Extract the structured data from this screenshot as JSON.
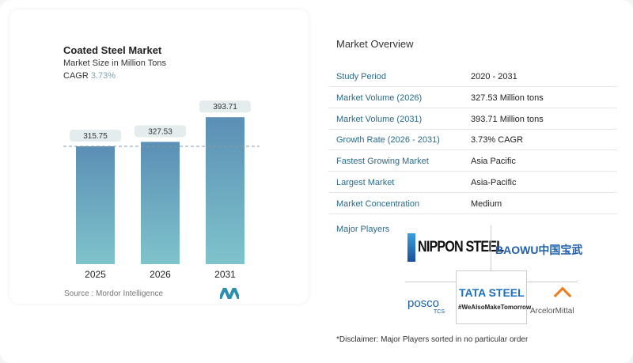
{
  "chart_data": {
    "type": "bar",
    "title": "Coated Steel Market",
    "subtitle": "Market Size in Million Tons",
    "cagr_label": "CAGR",
    "cagr_value": "3.73%",
    "categories": [
      "2025",
      "2026",
      "2031"
    ],
    "values": [
      315.75,
      327.53,
      393.71
    ],
    "value_labels": [
      "315.75",
      "327.53",
      "393.71"
    ],
    "ylim": [
      0,
      400
    ],
    "grid": false,
    "reference_line": 315.75,
    "bar_color_top": "#5b8fb5",
    "bar_color_bottom": "#7fc3cb",
    "source": "Source :  Mordor Intelligence"
  },
  "overview": {
    "title": "Market Overview",
    "rows": [
      {
        "k": "Study Period",
        "v": "2020 - 2031"
      },
      {
        "k": "Market Volume (2026)",
        "v": "327.53 Million tons"
      },
      {
        "k": "Market Volume (2031)",
        "v": "393.71 Million tons"
      },
      {
        "k": "Growth Rate (2026 - 2031)",
        "v": "3.73% CAGR"
      },
      {
        "k": "Fastest Growing Market",
        "v": "Asia Pacific"
      },
      {
        "k": "Largest Market",
        "v": "Asia-Pacific"
      },
      {
        "k": "Market Concentration",
        "v": "Medium"
      }
    ],
    "players_label": "Major Players",
    "players": [
      "NIPPON STEEL",
      "BAOWU中国宝武",
      "posco",
      "TCS",
      "TATA STEEL",
      "#WeAlsoMakeTomorrow",
      "ArcelorMittal"
    ],
    "disclaimer": "*Disclaimer: Major Players sorted in no particular order"
  }
}
